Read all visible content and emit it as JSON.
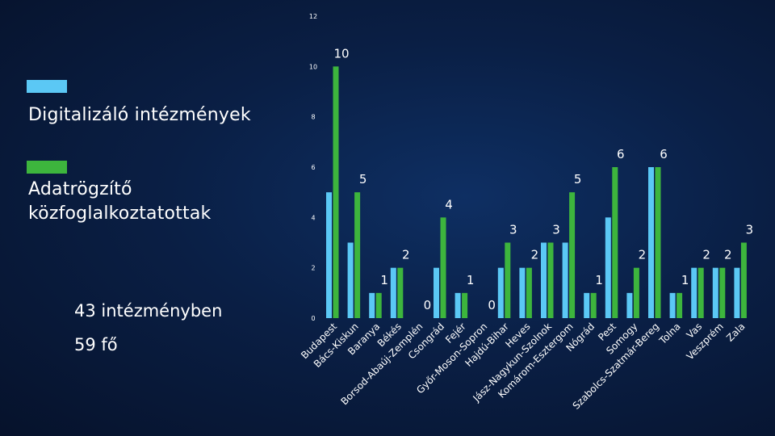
{
  "legend": {
    "series1_label": "Digitalizáló intézmények",
    "series2_line1": "Adatrögzítő",
    "series2_line2": "közfoglalkoztatottak"
  },
  "summary": {
    "line1": "43 intézményben",
    "line2": "59 fő"
  },
  "chart_data": {
    "type": "bar",
    "categories": [
      "Budapest",
      "Bács-Kiskun",
      "Baranya",
      "Békés",
      "Borsod-Abaúj-Zemplén",
      "Csongrád",
      "Fejér",
      "Győr-Moson-Sopron",
      "Hajdú-Bihar",
      "Heves",
      "Jász-Nagykun-Szolnok",
      "Komárom-Esztergom",
      "Nógrád",
      "Pest",
      "Somogy",
      "Szabolcs-Szatmár-Bereg",
      "Tolna",
      "Vas",
      "Veszprém",
      "Zala"
    ],
    "series": [
      {
        "name": "Digitalizáló intézmények",
        "color": "#5bc8f5",
        "values": [
          5,
          3,
          1,
          2,
          0,
          2,
          1,
          0,
          2,
          2,
          3,
          3,
          1,
          4,
          1,
          6,
          1,
          2,
          2,
          2
        ]
      },
      {
        "name": "Adatrögzítő közfoglalkoztatottak",
        "color": "#3db53d",
        "values": [
          10,
          5,
          1,
          2,
          0,
          4,
          1,
          0,
          3,
          2,
          3,
          5,
          1,
          6,
          2,
          6,
          1,
          2,
          2,
          3
        ]
      }
    ],
    "data_labels_series": "Adatrögzítő közfoglalkoztatottak",
    "yticks": [
      0,
      2,
      4,
      6,
      8,
      10,
      12
    ],
    "ylim": [
      0,
      12
    ],
    "grid": false,
    "legend_position": "left"
  }
}
